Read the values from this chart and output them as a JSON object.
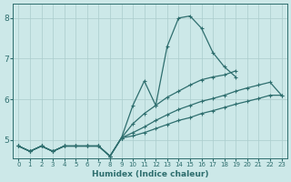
{
  "xlabel": "Humidex (Indice chaleur)",
  "bg_color": "#cce8e8",
  "grid_color": "#aacccc",
  "line_color": "#2e6e6e",
  "x": [
    0,
    1,
    2,
    3,
    4,
    5,
    6,
    7,
    8,
    9,
    10,
    11,
    12,
    13,
    14,
    15,
    16,
    17,
    18,
    19,
    20,
    21,
    22,
    23
  ],
  "line_max": [
    4.85,
    4.72,
    4.85,
    4.72,
    4.85,
    4.85,
    4.85,
    4.85,
    4.6,
    5.05,
    5.85,
    6.45,
    5.85,
    7.3,
    8.0,
    8.05,
    7.75,
    7.15,
    6.8,
    6.55,
    null,
    null,
    null,
    null
  ],
  "line_avg_high": [
    4.85,
    4.72,
    4.85,
    4.72,
    4.85,
    4.85,
    4.85,
    4.85,
    4.6,
    5.05,
    5.4,
    5.65,
    5.85,
    6.05,
    6.2,
    6.35,
    6.48,
    6.55,
    6.6,
    6.7,
    null,
    null,
    null,
    null
  ],
  "line_avg": [
    4.85,
    4.72,
    4.85,
    4.72,
    4.85,
    4.85,
    4.85,
    4.85,
    4.6,
    5.05,
    5.18,
    5.32,
    5.48,
    5.62,
    5.75,
    5.85,
    5.95,
    6.02,
    6.1,
    6.2,
    6.28,
    6.35,
    6.42,
    6.1
  ],
  "line_min": [
    4.85,
    4.72,
    4.85,
    4.72,
    4.85,
    4.85,
    4.85,
    4.85,
    4.6,
    5.05,
    5.1,
    5.18,
    5.28,
    5.38,
    5.48,
    5.55,
    5.65,
    5.72,
    5.8,
    5.88,
    5.95,
    6.02,
    6.1,
    6.1
  ],
  "ylim": [
    4.55,
    8.35
  ],
  "yticks": [
    5,
    6,
    7,
    8
  ],
  "xticks": [
    0,
    1,
    2,
    3,
    4,
    5,
    6,
    7,
    8,
    9,
    10,
    11,
    12,
    13,
    14,
    15,
    16,
    17,
    18,
    19,
    20,
    21,
    22,
    23
  ]
}
